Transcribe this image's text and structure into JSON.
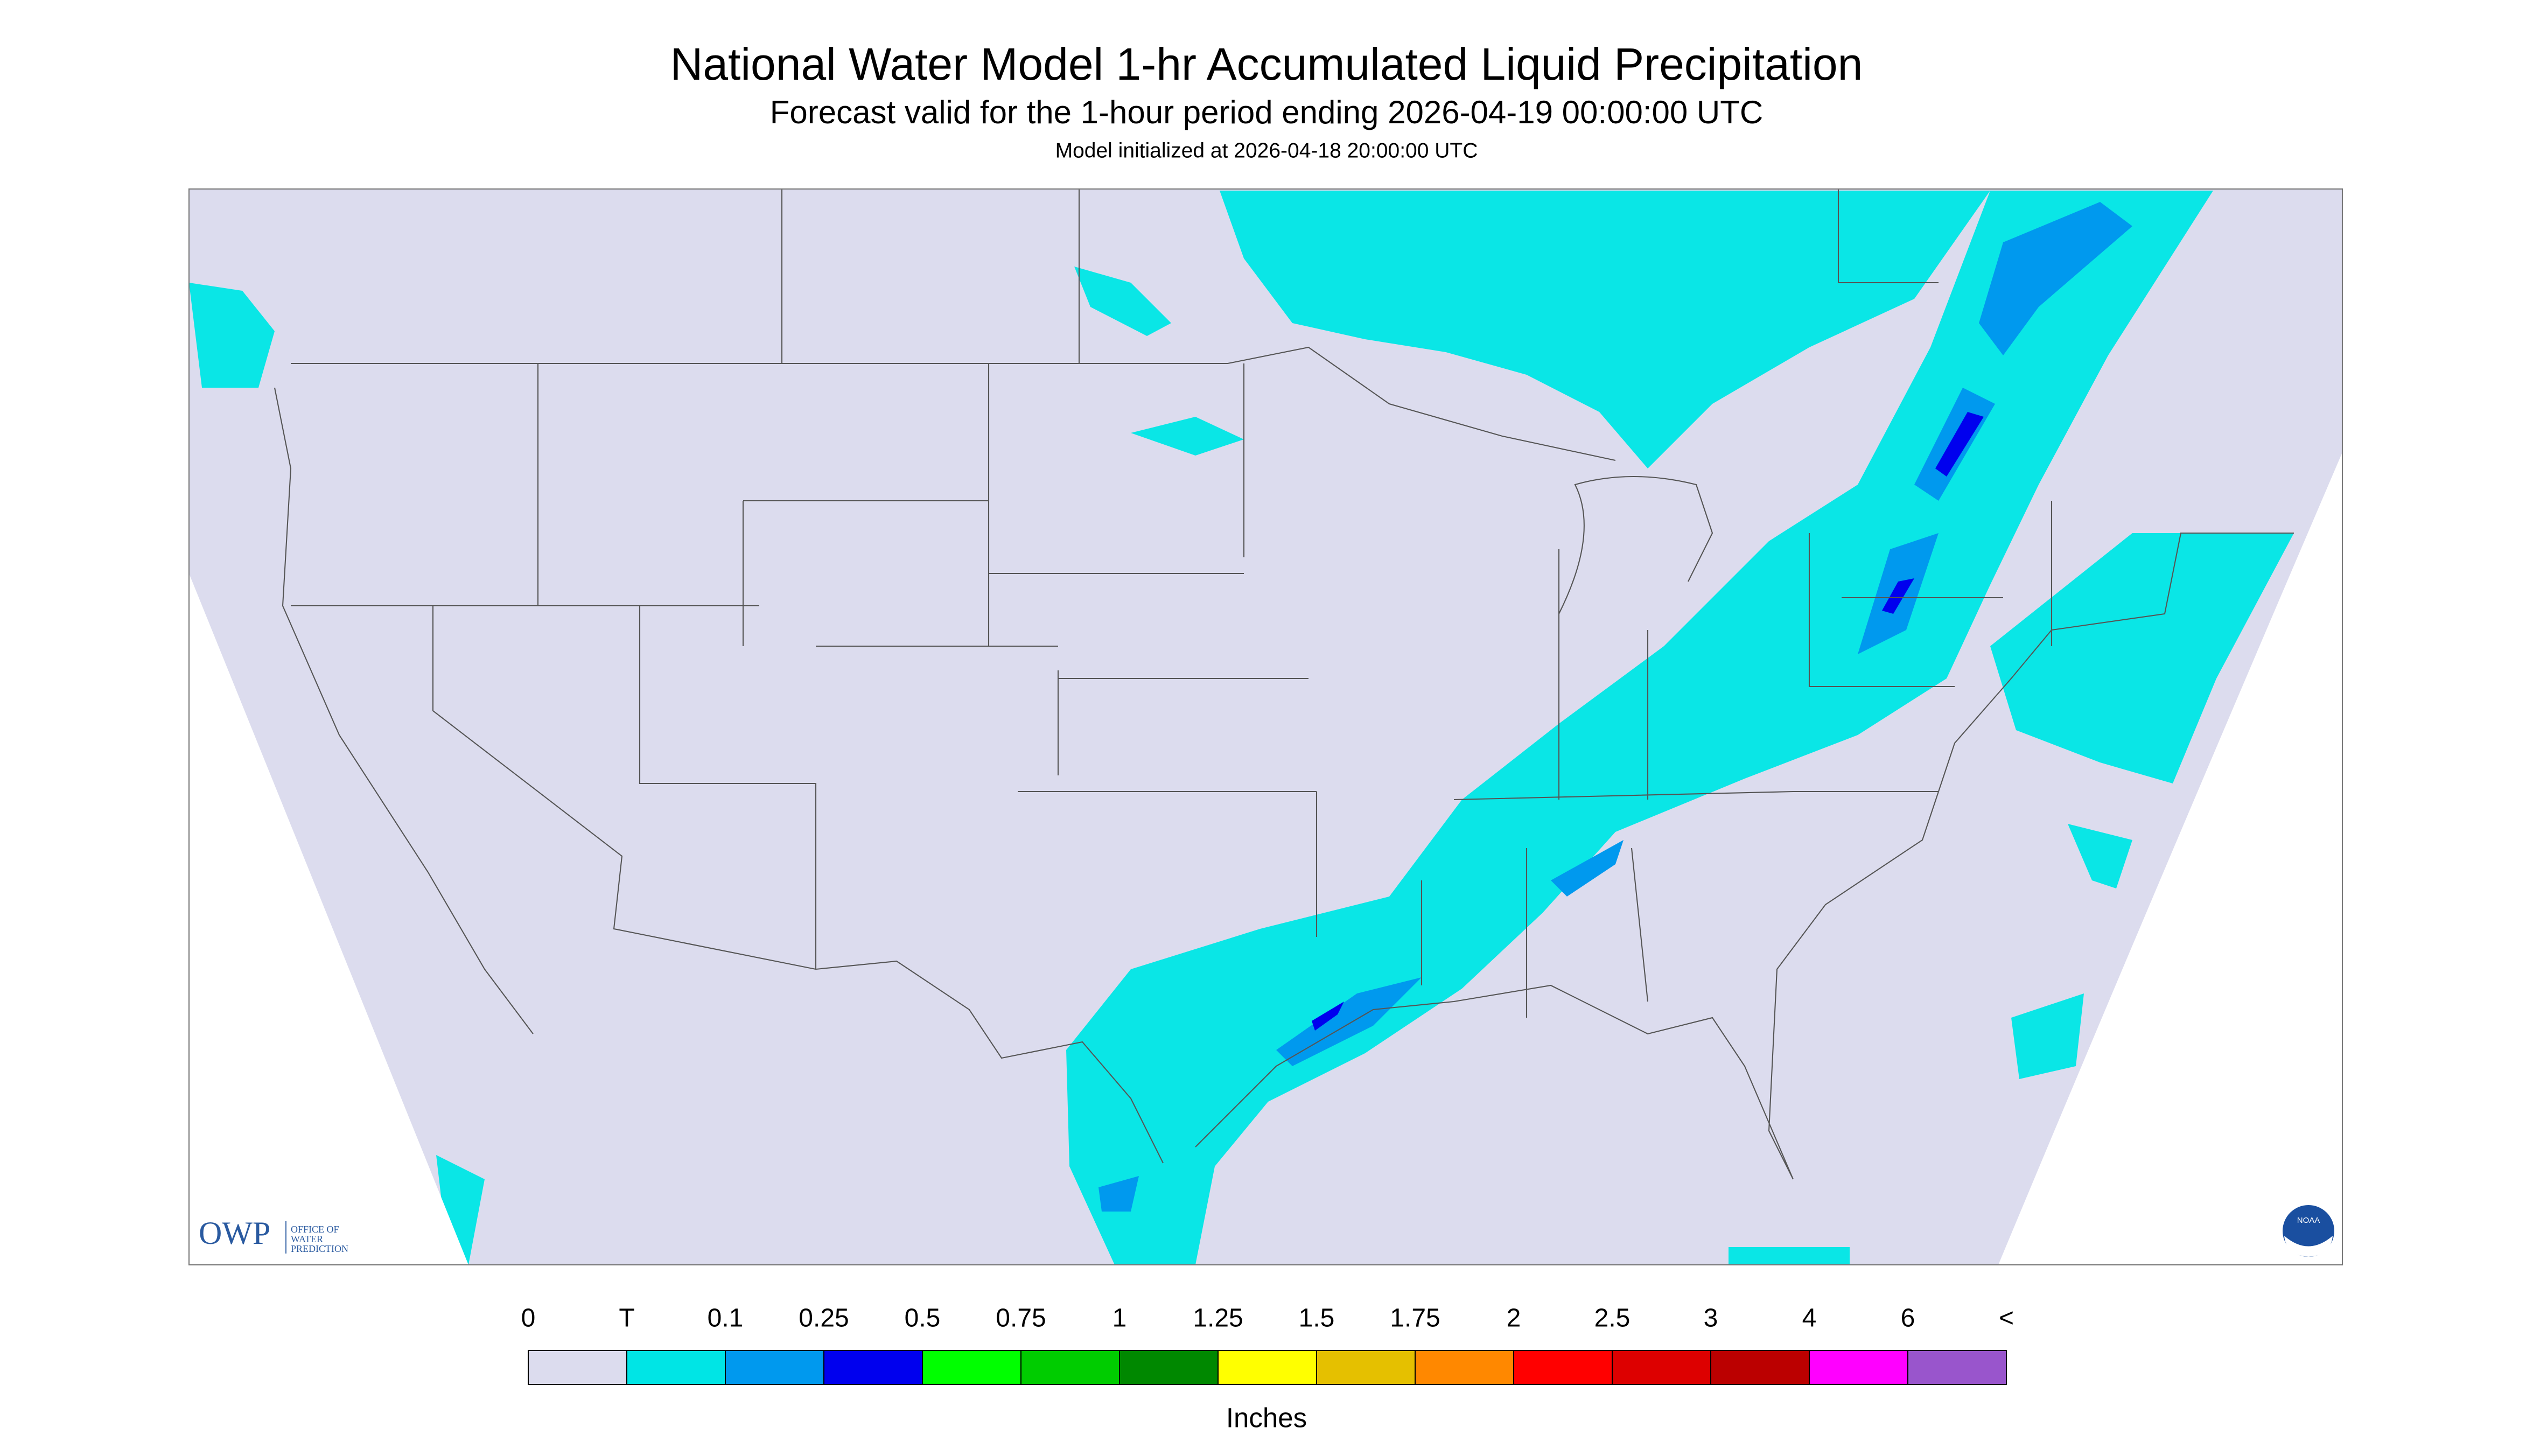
{
  "header": {
    "title": "National Water Model 1-hr Accumulated Liquid Precipitation",
    "subtitle": "Forecast valid for the 1-hour period ending 2026-04-19 00:00:00 UTC",
    "note": "Model initialized at 2026-04-18 20:00:00 UTC"
  },
  "logo": {
    "acronym": "OWP",
    "lines": [
      "OFFICE OF",
      "WATER",
      "PREDICTION"
    ],
    "badge": "NOAA"
  },
  "legend": {
    "labels": [
      "0",
      "T",
      "0.1",
      "0.25",
      "0.5",
      "0.75",
      "1",
      "1.25",
      "1.5",
      "1.75",
      "2",
      "2.5",
      "3",
      "4",
      "6",
      "<"
    ],
    "colors": [
      "#dcdcee",
      "#00e5e5",
      "#0099ee",
      "#0000ee",
      "#00ff00",
      "#00cc00",
      "#008800",
      "#ffff00",
      "#e5c000",
      "#ff8800",
      "#ff0000",
      "#dd0000",
      "#bb0000",
      "#ff00ff",
      "#9955cc"
    ],
    "unit": "Inches"
  }
}
